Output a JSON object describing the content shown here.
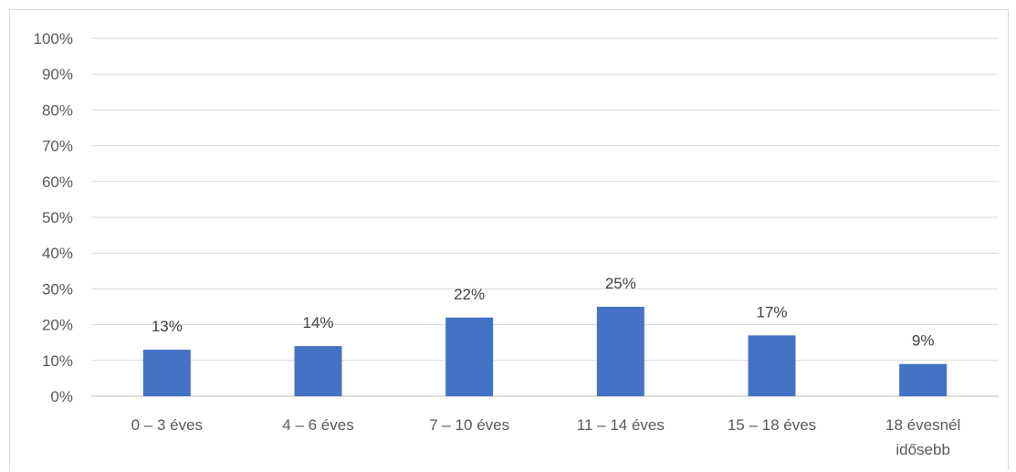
{
  "chart_data": {
    "type": "bar",
    "categories": [
      "0 – 3 éves",
      "4 – 6 éves",
      "7 – 10 éves",
      "11 – 14 éves",
      "15 – 18 éves",
      "18 évesnél idősebb"
    ],
    "category_lines": [
      [
        "0 – 3 éves"
      ],
      [
        "4 – 6 éves"
      ],
      [
        "7 – 10 éves"
      ],
      [
        "11 – 14 éves"
      ],
      [
        "15 – 18 éves"
      ],
      [
        "18 évesnél",
        "idősebb"
      ]
    ],
    "values": [
      13,
      14,
      22,
      25,
      17,
      9
    ],
    "data_labels": [
      "13%",
      "14%",
      "22%",
      "25%",
      "17%",
      "9%"
    ],
    "yticks": [
      0,
      10,
      20,
      30,
      40,
      50,
      60,
      70,
      80,
      90,
      100
    ],
    "ytick_labels": [
      "0%",
      "10%",
      "20%",
      "30%",
      "40%",
      "50%",
      "60%",
      "70%",
      "80%",
      "90%",
      "100%"
    ],
    "ylim": [
      0,
      100
    ],
    "title": "",
    "xlabel": "",
    "ylabel": "",
    "grid": true,
    "bar_color": "#4472c4"
  }
}
